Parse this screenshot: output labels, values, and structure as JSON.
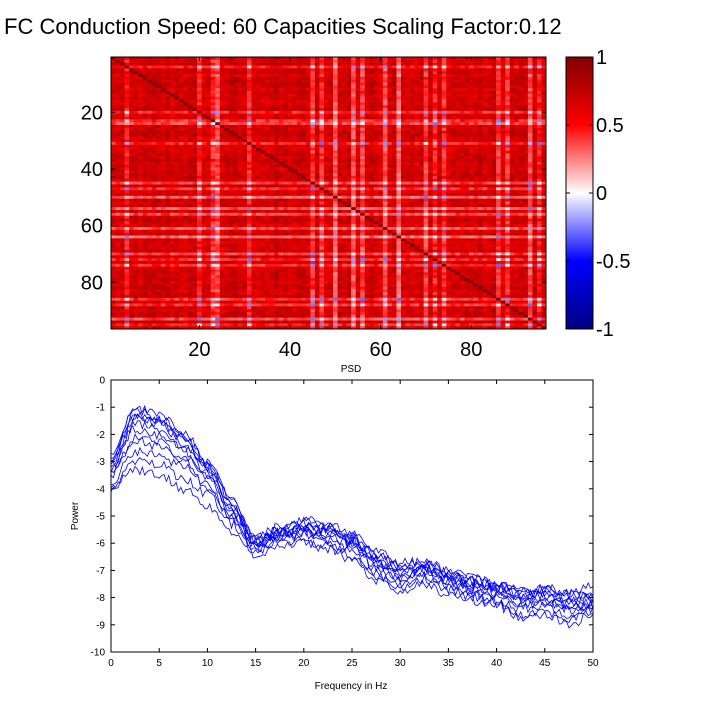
{
  "title": "FC Conduction Speed: 60  Capacities Scaling Factor:0.12",
  "chart_data": [
    {
      "type": "heatmap",
      "title": "FC Conduction Speed: 60  Capacities Scaling Factor:0.12",
      "matrix_size": 96,
      "xlim": [
        0.5,
        96.5
      ],
      "ylim": [
        0.5,
        96.5
      ],
      "xticks": [
        20,
        40,
        60,
        80
      ],
      "yticks": [
        20,
        40,
        60,
        80
      ],
      "y_direction": "top-down",
      "diagonal_value": 1.0,
      "typical_value": 0.6,
      "low_correlation_rows": [
        4,
        20,
        23,
        24,
        31,
        45,
        47,
        50,
        54,
        56,
        61,
        64,
        70,
        72,
        74,
        86,
        88,
        93,
        95
      ],
      "colorbar": {
        "clim": [
          -1,
          1
        ],
        "ticks": [
          1,
          0.5,
          0,
          -0.5,
          -1
        ],
        "tick_labels": [
          "1",
          "0.5",
          "0",
          "-0.5",
          "-1"
        ],
        "colors": [
          "#000080",
          "#0000ff",
          "#ffffff",
          "#ff0000",
          "#800000"
        ]
      }
    },
    {
      "type": "line",
      "title": "PSD",
      "xlabel": "Frequency in Hz",
      "ylabel": "Power",
      "xlim": [
        0,
        50
      ],
      "ylim": [
        -10,
        0
      ],
      "xticks": [
        0,
        5,
        10,
        15,
        20,
        25,
        30,
        35,
        40,
        45,
        50
      ],
      "yticks": [
        0,
        -1,
        -2,
        -3,
        -4,
        -5,
        -6,
        -7,
        -8,
        -9,
        -10
      ],
      "line_color": "#0000ff",
      "x": [
        0,
        2.5,
        5,
        7.5,
        10,
        12.5,
        15,
        17.5,
        20,
        22.5,
        25,
        27.5,
        30,
        32.5,
        35,
        37.5,
        40,
        42.5,
        45,
        47.5,
        50
      ],
      "series": [
        {
          "values": [
            -2.9,
            -1.1,
            -1.4,
            -2.0,
            -3.0,
            -4.3,
            -5.8,
            -5.5,
            -5.3,
            -5.5,
            -5.6,
            -6.3,
            -6.7,
            -6.7,
            -7.1,
            -7.3,
            -7.5,
            -7.7,
            -7.6,
            -7.9,
            -8.0
          ]
        },
        {
          "values": [
            -3.1,
            -1.3,
            -1.6,
            -2.3,
            -3.3,
            -4.6,
            -5.9,
            -5.6,
            -5.5,
            -5.7,
            -5.9,
            -6.6,
            -7.0,
            -6.9,
            -7.2,
            -7.5,
            -7.7,
            -7.9,
            -7.9,
            -8.1,
            -8.2
          ]
        },
        {
          "values": [
            -2.7,
            -1.0,
            -1.3,
            -1.9,
            -3.0,
            -4.5,
            -6.0,
            -5.7,
            -5.4,
            -5.4,
            -5.8,
            -6.5,
            -6.9,
            -6.8,
            -7.2,
            -7.4,
            -7.6,
            -7.9,
            -7.8,
            -8.2,
            -8.1
          ]
        },
        {
          "values": [
            -3.3,
            -1.6,
            -1.8,
            -2.6,
            -3.5,
            -4.8,
            -6.1,
            -5.8,
            -5.6,
            -5.6,
            -6.0,
            -6.7,
            -7.1,
            -7.0,
            -7.3,
            -7.6,
            -7.8,
            -8.1,
            -8.0,
            -8.3,
            -8.3
          ]
        },
        {
          "values": [
            -3.5,
            -2.1,
            -2.3,
            -2.8,
            -3.6,
            -4.9,
            -6.0,
            -5.6,
            -5.4,
            -5.7,
            -6.1,
            -6.8,
            -7.2,
            -7.0,
            -7.4,
            -7.8,
            -7.9,
            -8.2,
            -8.1,
            -8.4,
            -8.2
          ]
        },
        {
          "values": [
            -3.0,
            -1.4,
            -1.5,
            -2.1,
            -3.2,
            -4.7,
            -5.8,
            -5.4,
            -5.1,
            -5.4,
            -5.9,
            -6.9,
            -7.3,
            -6.8,
            -7.1,
            -7.5,
            -7.6,
            -8.0,
            -7.9,
            -8.1,
            -7.8
          ]
        },
        {
          "values": [
            -3.8,
            -2.6,
            -2.8,
            -3.2,
            -3.8,
            -5.0,
            -6.2,
            -5.9,
            -5.7,
            -6.0,
            -6.3,
            -7.1,
            -7.5,
            -7.2,
            -7.6,
            -7.9,
            -8.1,
            -8.4,
            -8.3,
            -8.6,
            -8.4
          ]
        },
        {
          "values": [
            -4.0,
            -3.0,
            -3.1,
            -3.6,
            -4.2,
            -5.3,
            -6.3,
            -6.0,
            -5.9,
            -6.1,
            -6.5,
            -7.2,
            -7.6,
            -7.3,
            -7.7,
            -8.0,
            -8.2,
            -8.6,
            -8.5,
            -8.8,
            -8.5
          ]
        },
        {
          "values": [
            -3.9,
            -3.3,
            -3.5,
            -4.0,
            -4.6,
            -5.6,
            -6.4,
            -6.1,
            -6.0,
            -6.2,
            -6.6,
            -7.4,
            -7.8,
            -7.5,
            -7.9,
            -8.1,
            -8.3,
            -8.7,
            -8.6,
            -9.0,
            -8.6
          ]
        },
        {
          "values": [
            -3.2,
            -1.8,
            -2.0,
            -2.5,
            -3.4,
            -4.7,
            -6.2,
            -5.7,
            -5.4,
            -5.5,
            -5.9,
            -6.6,
            -7.0,
            -6.9,
            -7.2,
            -7.4,
            -7.6,
            -7.8,
            -7.7,
            -7.9,
            -7.9
          ]
        },
        {
          "values": [
            -2.8,
            -1.2,
            -1.5,
            -2.2,
            -3.1,
            -4.4,
            -5.9,
            -5.5,
            -5.2,
            -5.3,
            -5.7,
            -6.4,
            -6.8,
            -6.7,
            -7.0,
            -7.3,
            -7.5,
            -7.8,
            -7.7,
            -7.8,
            -7.6
          ]
        },
        {
          "values": [
            -3.4,
            -2.2,
            -2.5,
            -3.0,
            -3.9,
            -5.1,
            -6.1,
            -5.8,
            -5.6,
            -5.9,
            -6.2,
            -6.9,
            -7.4,
            -7.1,
            -7.5,
            -7.7,
            -7.9,
            -8.3,
            -8.2,
            -8.5,
            -8.4
          ]
        }
      ]
    }
  ]
}
